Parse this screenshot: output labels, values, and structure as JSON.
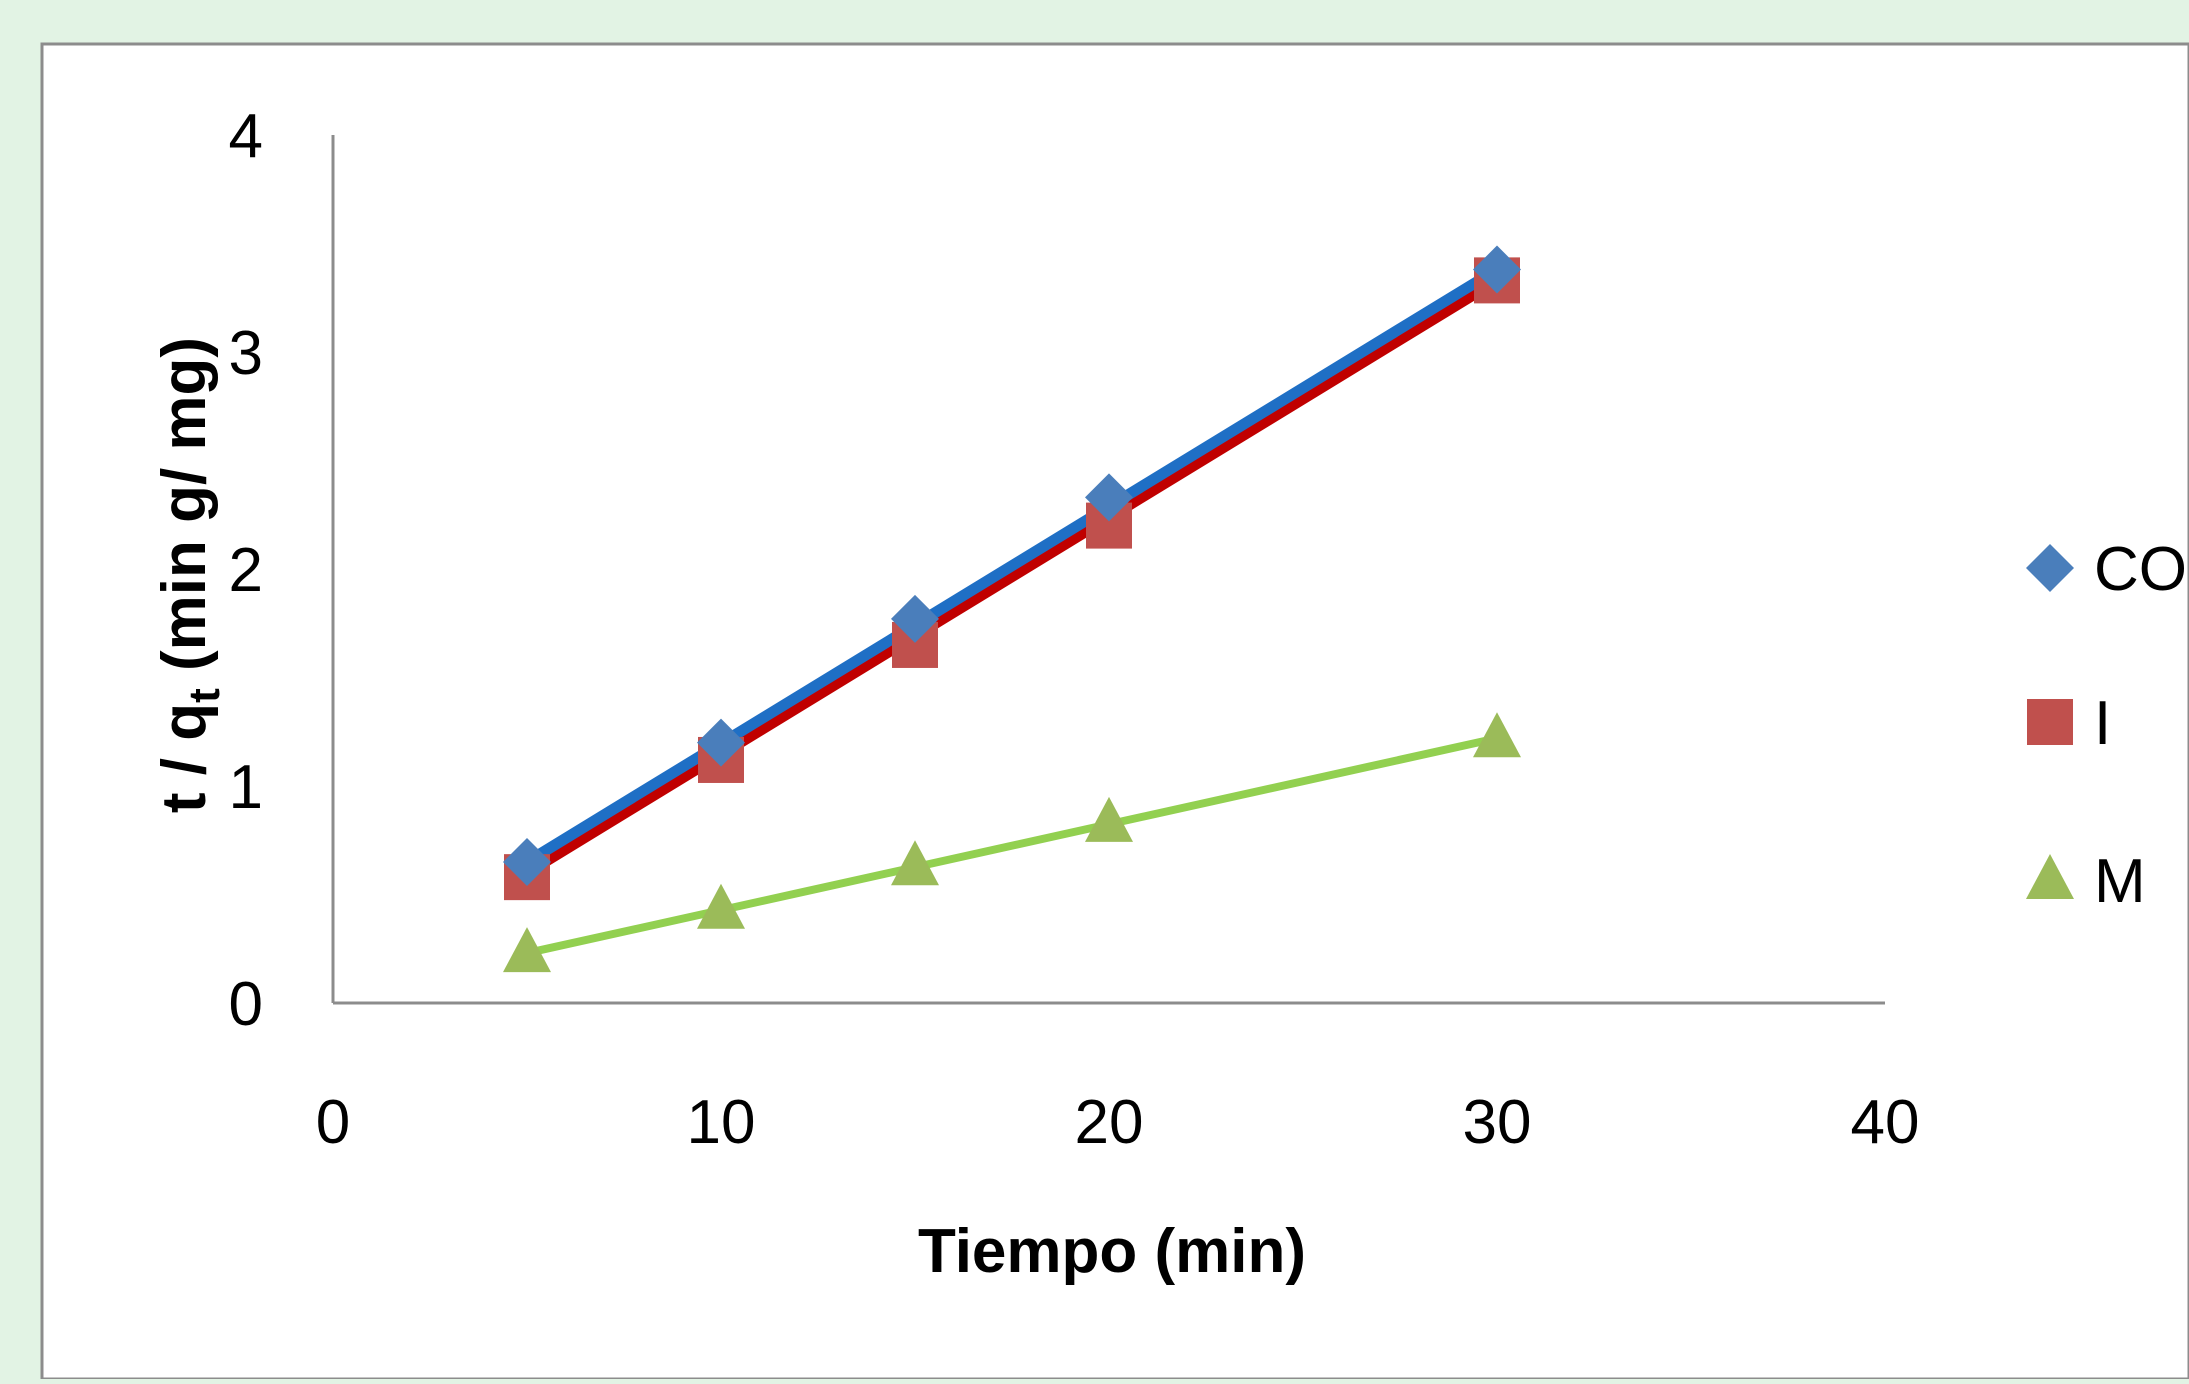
{
  "colors": {
    "page_background": "#e2f3e4",
    "plot_panel": "#ffffff",
    "panel_border": "#8c8c8c",
    "axis": "#8c8c8c",
    "CO_marker": "#4a7ebb",
    "CO_line": "#1f6fc5",
    "I_marker": "#c0504d",
    "I_line": "#c00000",
    "M_marker": "#9bbb59",
    "M_line": "#92d050"
  },
  "chart_data": {
    "type": "scatter",
    "title": "",
    "xlabel": "Tiempo (min)",
    "ylabel": "t / qt (min g/ mg)",
    "ylabel_main": "t / q",
    "ylabel_sub": "t",
    "ylabel_rest": " (min g/ mg)",
    "xlim": [
      0,
      40
    ],
    "ylim": [
      0,
      4
    ],
    "x_ticks": [
      0,
      10,
      20,
      30,
      40
    ],
    "y_ticks": [
      0,
      1,
      2,
      3,
      4
    ],
    "grid": false,
    "legend_position": "right",
    "x": [
      5,
      10,
      15,
      20,
      30
    ],
    "series": [
      {
        "name": "CO",
        "marker": "diamond",
        "values": [
          0.65,
          1.2,
          1.77,
          2.33,
          3.38
        ],
        "trendline": {
          "x": [
            5,
            30
          ],
          "y": [
            0.65,
            3.38
          ]
        }
      },
      {
        "name": "I",
        "marker": "square",
        "values": [
          0.58,
          1.12,
          1.65,
          2.2,
          3.33
        ],
        "trendline": {
          "x": [
            5,
            30
          ],
          "y": [
            0.6,
            3.33
          ]
        }
      },
      {
        "name": "M",
        "marker": "triangle",
        "values": [
          0.23,
          0.43,
          0.63,
          0.83,
          1.22
        ],
        "trendline": {
          "x": [
            5,
            30
          ],
          "y": [
            0.23,
            1.22
          ]
        }
      }
    ]
  }
}
